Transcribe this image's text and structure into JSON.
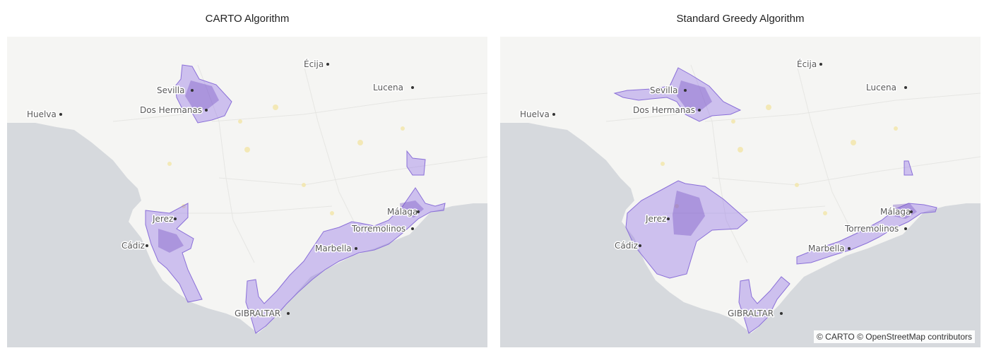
{
  "panels": {
    "left": {
      "title": "CARTO Algorithm"
    },
    "right": {
      "title": "Standard Greedy Algorithm"
    }
  },
  "cities": {
    "ecija": "Écija",
    "sevilla": "Sevilla",
    "lucena": "Lucena",
    "huelva": "Huelva",
    "dos_hermanas": "Dos Hermanas",
    "jerez": "Jerez",
    "cadiz": "Cádiz",
    "torremolinos": "Torremolinos",
    "malaga": "Málaga",
    "marbella": "Marbella",
    "gibraltar": "GIBRALTAR"
  },
  "attribution": "© CARTO © OpenStreetMap contributors",
  "colors": {
    "sea": "#d6d9dd",
    "land": "#f5f5f3",
    "area_fill": "#9678e6",
    "area_stroke": "#8a6fd8",
    "roads": "#f3e6a8"
  }
}
